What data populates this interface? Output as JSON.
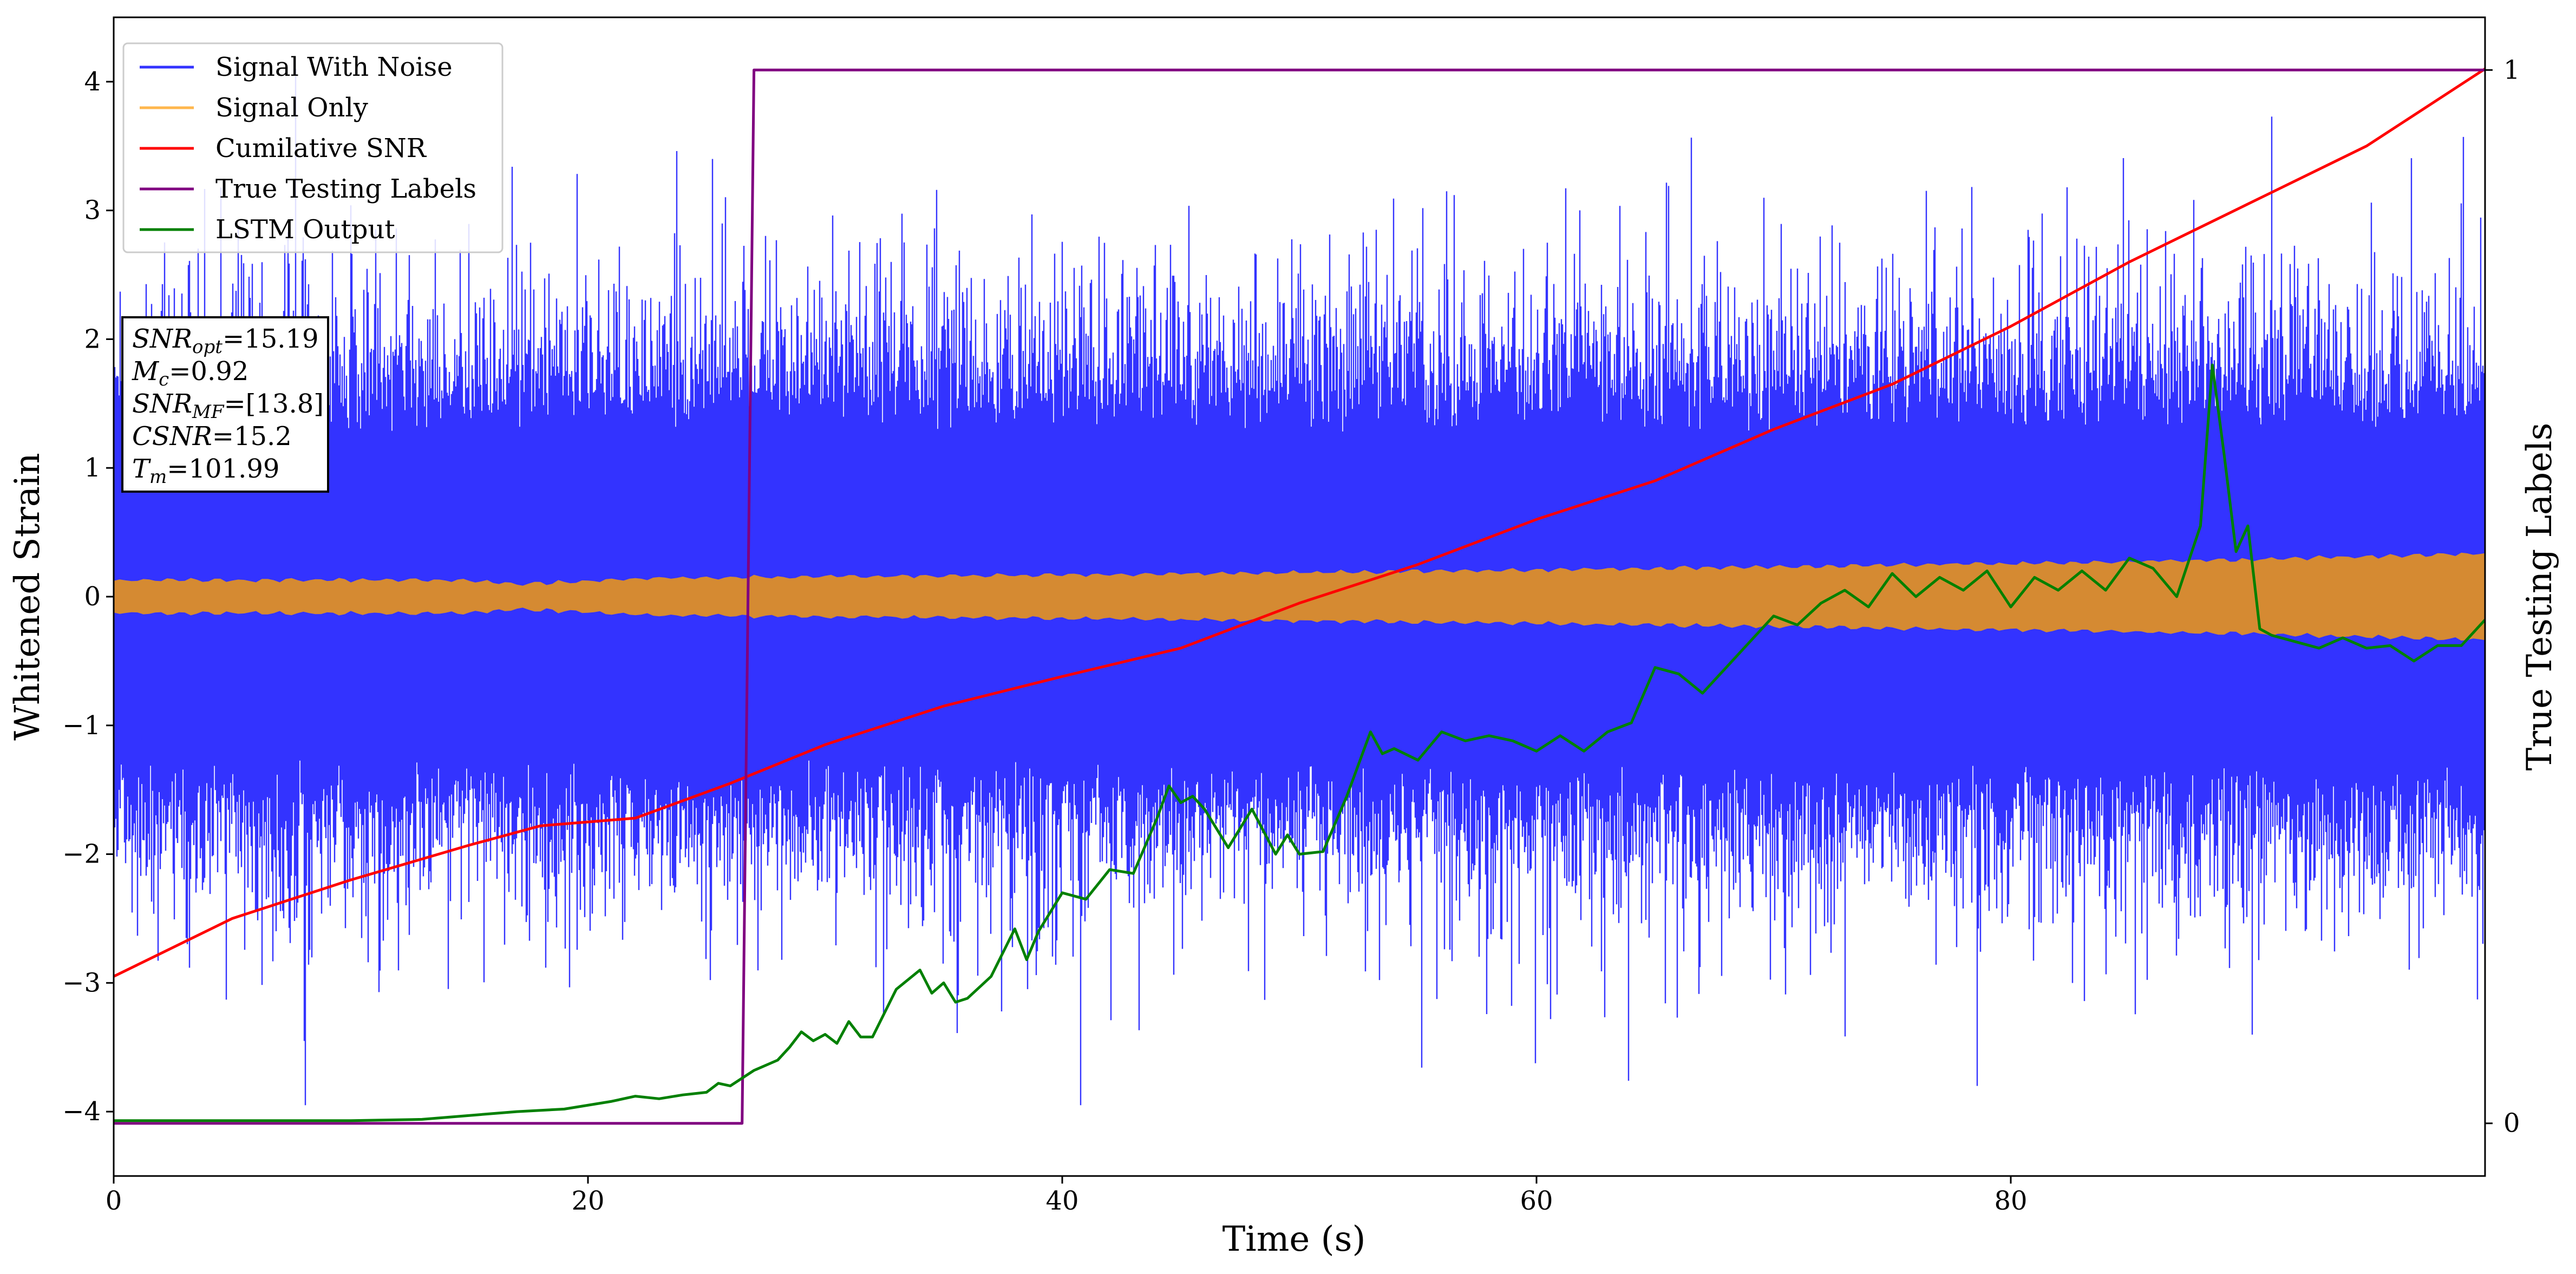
{
  "chart_data": {
    "type": "line",
    "xlabel": "Time (s)",
    "ylabel": "Whitened Strain",
    "y2label": "True Testing Labels",
    "xlim": [
      0,
      100
    ],
    "ylim": [
      -4.5,
      4.5
    ],
    "y2lim": [
      -0.05,
      1.05
    ],
    "xticks": [
      0,
      20,
      40,
      60,
      80
    ],
    "yticks": [
      -4,
      -3,
      -2,
      -1,
      0,
      1,
      2,
      3,
      4
    ],
    "y2ticks": [
      0,
      1
    ],
    "grid": false,
    "legend_position": "top-left",
    "series": [
      {
        "name": "Signal With Noise",
        "color": "#3333ff",
        "axis": "left",
        "kind": "noise",
        "amplitude_typical": 1.4,
        "peak_max": 4.1,
        "peak_min": -3.95
      },
      {
        "name": "Signal Only",
        "color": "#d58a32",
        "legend_color": "#ffb74d",
        "axis": "left",
        "kind": "envelope",
        "envelope_points": [
          [
            0,
            0.12
          ],
          [
            15,
            0.12
          ],
          [
            17,
            0.09
          ],
          [
            23,
            0.14
          ],
          [
            40,
            0.16
          ],
          [
            60,
            0.2
          ],
          [
            80,
            0.25
          ],
          [
            90,
            0.28
          ],
          [
            100,
            0.33
          ]
        ]
      },
      {
        "name": "Cumilative SNR",
        "color": "#ff0000",
        "axis": "left",
        "x": [
          0,
          5,
          10,
          15,
          18,
          22,
          26,
          30,
          35,
          40,
          45,
          50,
          55,
          60,
          65,
          70,
          75,
          80,
          85,
          90,
          95,
          100
        ],
        "y": [
          -2.95,
          -2.5,
          -2.2,
          -1.93,
          -1.78,
          -1.72,
          -1.45,
          -1.15,
          -0.85,
          -0.62,
          -0.4,
          -0.05,
          0.25,
          0.6,
          0.9,
          1.3,
          1.65,
          2.1,
          2.6,
          3.05,
          3.5,
          4.1
        ]
      },
      {
        "name": "True Testing Labels",
        "color": "#800080",
        "axis": "right",
        "x": [
          0,
          26.5,
          27.0,
          100
        ],
        "y": [
          0,
          0,
          1,
          1
        ]
      },
      {
        "name": "LSTM Output",
        "color": "#008000",
        "axis": "left",
        "x": [
          0,
          10,
          13,
          15,
          17,
          19,
          21,
          22,
          23,
          24,
          25,
          25.5,
          26,
          27,
          28,
          28.5,
          29,
          29.5,
          30,
          30.5,
          31,
          31.5,
          32,
          33,
          34,
          34.5,
          35,
          35.5,
          36,
          37,
          38,
          38.5,
          39,
          40,
          41,
          42,
          43,
          44,
          44.5,
          45,
          45.5,
          46,
          47,
          48,
          49,
          49.5,
          50,
          51,
          52,
          53,
          53.5,
          54,
          55,
          56,
          57,
          58,
          59,
          60,
          61,
          62,
          63,
          64,
          65,
          66,
          67,
          68,
          69,
          70,
          71,
          72,
          73,
          74,
          75,
          76,
          77,
          78,
          79,
          80,
          81,
          82,
          83,
          84,
          85,
          86,
          87,
          88,
          88.5,
          89,
          89.5,
          90,
          90.5,
          91,
          92,
          93,
          94,
          95,
          96,
          97,
          98,
          99,
          100
        ],
        "y": [
          -4.07,
          -4.07,
          -4.06,
          -4.03,
          -4.0,
          -3.98,
          -3.92,
          -3.88,
          -3.9,
          -3.87,
          -3.85,
          -3.78,
          -3.8,
          -3.68,
          -3.6,
          -3.5,
          -3.38,
          -3.45,
          -3.4,
          -3.47,
          -3.3,
          -3.42,
          -3.42,
          -3.05,
          -2.9,
          -3.08,
          -3.0,
          -3.15,
          -3.12,
          -2.95,
          -2.58,
          -2.82,
          -2.6,
          -2.3,
          -2.35,
          -2.12,
          -2.15,
          -1.72,
          -1.47,
          -1.6,
          -1.55,
          -1.65,
          -1.95,
          -1.65,
          -2.0,
          -1.85,
          -2.0,
          -1.98,
          -1.55,
          -1.05,
          -1.22,
          -1.18,
          -1.27,
          -1.05,
          -1.12,
          -1.08,
          -1.12,
          -1.2,
          -1.08,
          -1.2,
          -1.05,
          -0.98,
          -0.55,
          -0.6,
          -0.75,
          -0.55,
          -0.35,
          -0.15,
          -0.22,
          -0.05,
          0.05,
          -0.08,
          0.18,
          0.0,
          0.15,
          0.05,
          0.2,
          -0.08,
          0.15,
          0.05,
          0.2,
          0.05,
          0.3,
          0.22,
          0.0,
          0.55,
          1.8,
          1.1,
          0.35,
          0.55,
          -0.25,
          -0.3,
          -0.35,
          -0.4,
          -0.32,
          -0.4,
          -0.38,
          -0.5,
          -0.38,
          -0.38,
          -0.18
        ]
      }
    ],
    "annotations": {
      "lines": [
        {
          "base": "SNR",
          "sub": "opt",
          "value": "=15.19"
        },
        {
          "base": "M",
          "sub": "c",
          "value": "=0.92"
        },
        {
          "base": "SNR",
          "sub": "MF",
          "value": "=[13.8]"
        },
        {
          "base": "CSNR",
          "sub": "",
          "value": "=15.2"
        },
        {
          "base": "T",
          "sub": "m",
          "value": "=101.99"
        }
      ]
    }
  }
}
